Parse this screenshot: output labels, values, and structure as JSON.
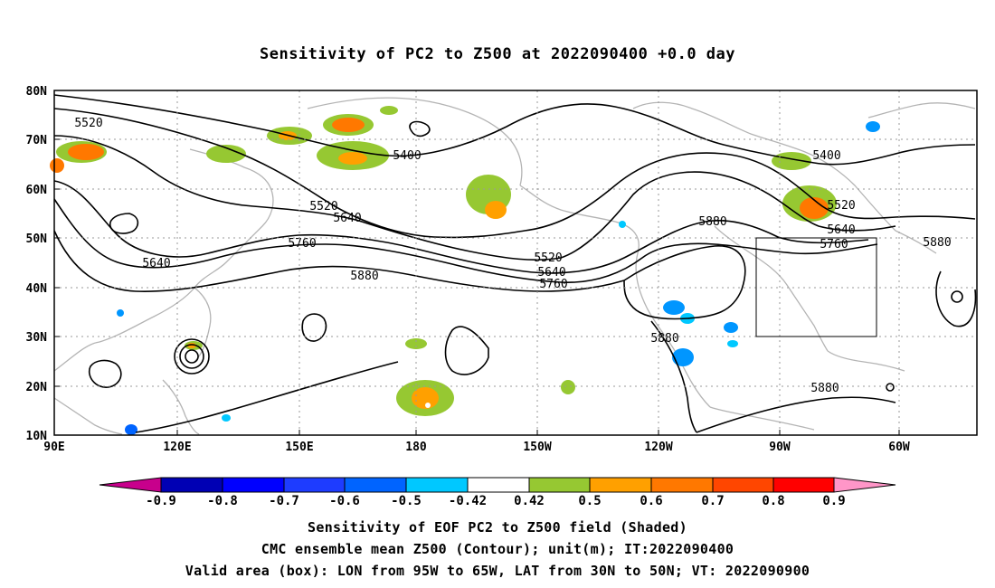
{
  "title": "Sensitivity of PC2 to Z500 at 2022090400 +0.0 day",
  "lat_labels": [
    "80N",
    "70N",
    "60N",
    "50N",
    "40N",
    "30N",
    "20N",
    "10N"
  ],
  "lon_labels": [
    "90E",
    "120E",
    "150E",
    "180",
    "150W",
    "120W",
    "90W",
    "60W"
  ],
  "contour_labels": [
    "5520",
    "5400",
    "5520",
    "5640",
    "5760",
    "5640",
    "5880",
    "5520",
    "5640",
    "5760",
    "5880",
    "5880",
    "5880",
    "5400",
    "5520",
    "5640",
    "5760",
    "5880"
  ],
  "colorbar": {
    "colors": [
      "#c8008c",
      "#0000b4",
      "#0000ff",
      "#1e3cff",
      "#0064ff",
      "#0096ff",
      "#00c8ff",
      "#ffffff",
      "#96c832",
      "#ffa000",
      "#ff7800",
      "#ff4600",
      "#ff0000",
      "#ff96c8"
    ],
    "labels": [
      "-0.9",
      "-0.8",
      "-0.7",
      "-0.6",
      "-0.5",
      "-0.42",
      "0.42",
      "0.5",
      "0.6",
      "0.7",
      "0.8",
      "0.9"
    ]
  },
  "captions": [
    "Sensitivity of EOF PC2 to Z500 field (Shaded)",
    "CMC ensemble mean Z500 (Contour); unit(m); IT:2022090400",
    "Valid area (box): LON from 95W to 65W, LAT from 30N to 50N; VT: 2022090900"
  ]
}
